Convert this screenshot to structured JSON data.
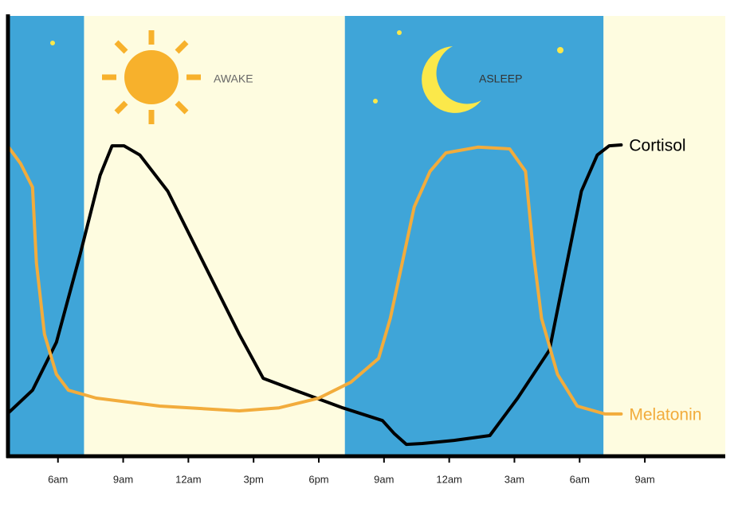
{
  "chart_data": {
    "type": "line",
    "annotations": [
      "AWAKE",
      "ASLEEP"
    ],
    "xlim": [
      3.7,
      36.7
    ],
    "ylim": [
      0,
      100
    ],
    "xticks": [
      {
        "value": 6,
        "label": "6am"
      },
      {
        "value": 9,
        "label": "9am"
      },
      {
        "value": 12,
        "label": "12am"
      },
      {
        "value": 15,
        "label": "3pm"
      },
      {
        "value": 18,
        "label": "6pm"
      },
      {
        "value": 21,
        "label": "9am"
      },
      {
        "value": 24,
        "label": "12am"
      },
      {
        "value": 27,
        "label": "3am"
      },
      {
        "value": 30,
        "label": "6am"
      },
      {
        "value": 33,
        "label": "9am"
      }
    ],
    "bands": [
      {
        "start": 3.7,
        "end": 7.2,
        "color": "#3fa5d8"
      },
      {
        "start": 7.2,
        "end": 19.2,
        "color": "#fefce0"
      },
      {
        "start": 19.2,
        "end": 31.1,
        "color": "#3fa5d8"
      },
      {
        "start": 31.1,
        "end": 36.7,
        "color": "#fefce0"
      }
    ],
    "series": [
      {
        "name": "Cortisol",
        "color": "#000000",
        "x": [
          3.73,
          4.83,
          5.93,
          7.02,
          7.94,
          8.49,
          9.04,
          9.77,
          11.05,
          12.88,
          14.34,
          15.44,
          16.9,
          19.1,
          20.93,
          21.48,
          22.03,
          22.76,
          24.22,
          25.87,
          27.15,
          28.61,
          29.34,
          30.08,
          30.81,
          31.36,
          31.91
        ],
        "values": [
          9.9,
          15.0,
          25.9,
          45.8,
          63.8,
          70.5,
          70.5,
          68.4,
          60.2,
          42.1,
          27.7,
          17.7,
          15.0,
          11.0,
          8.1,
          5.1,
          2.7,
          2.9,
          3.6,
          4.7,
          13.2,
          24.1,
          42.1,
          60.2,
          68.4,
          70.5,
          70.7
        ]
      },
      {
        "name": "Melatonin",
        "color": "#f2ac3c",
        "x": [
          3.73,
          4.28,
          4.83,
          5.01,
          5.38,
          5.93,
          6.48,
          7.76,
          10.68,
          14.34,
          16.17,
          18.0,
          19.47,
          20.75,
          21.29,
          21.84,
          22.39,
          23.12,
          23.85,
          25.32,
          26.78,
          27.51,
          27.88,
          28.25,
          28.98,
          29.89,
          31.17,
          31.91
        ],
        "values": [
          70.2,
          66.5,
          61.1,
          43.9,
          27.7,
          18.6,
          15.0,
          13.2,
          11.4,
          10.3,
          11.0,
          13.2,
          16.8,
          22.2,
          31.3,
          43.9,
          56.6,
          64.7,
          68.9,
          70.2,
          69.8,
          64.7,
          45.8,
          31.3,
          18.6,
          11.4,
          9.6,
          9.6
        ]
      }
    ]
  }
}
